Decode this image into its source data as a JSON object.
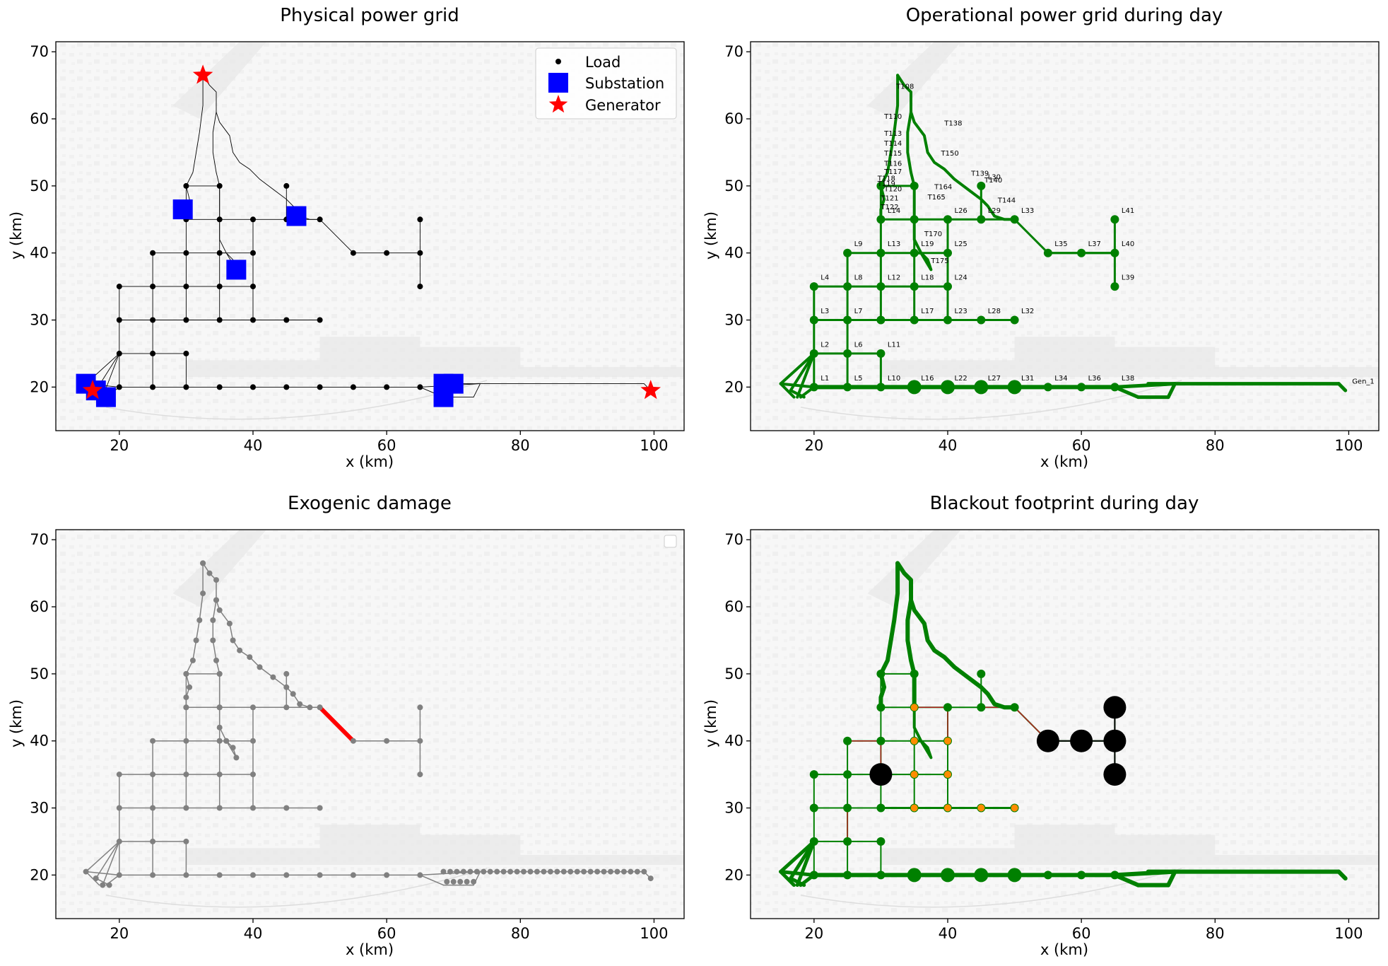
{
  "colors": {
    "load": "#000000",
    "substation": "#0000ff",
    "generator": "#ff0000",
    "operational": "#008000",
    "damage": "#ff0000",
    "damaged_line": "#b22222",
    "grey": "#808080",
    "orange": "#ff8c00",
    "terrain": "#e8e8e8"
  },
  "chart_data": [
    {
      "type": "scatter",
      "title": "Physical power grid",
      "xlabel": "x (km)",
      "ylabel": "y (km)",
      "xlim": [
        10.5,
        104.5
      ],
      "ylim": [
        13.5,
        71.5
      ],
      "xticks": [
        "20",
        "40",
        "60",
        "80",
        "100"
      ],
      "yticks": [
        "20",
        "30",
        "40",
        "50",
        "60",
        "70"
      ],
      "grid": false,
      "legend_position": "top-right",
      "series": [
        {
          "name": "Load",
          "points": [
            [
              20,
              20
            ],
            [
              25,
              20
            ],
            [
              30,
              20
            ],
            [
              35,
              20
            ],
            [
              40,
              20
            ],
            [
              45,
              20
            ],
            [
              50,
              20
            ],
            [
              55,
              20
            ],
            [
              60,
              20
            ],
            [
              65,
              20
            ],
            [
              20,
              25
            ],
            [
              25,
              25
            ],
            [
              30,
              25
            ],
            [
              20,
              30
            ],
            [
              25,
              30
            ],
            [
              30,
              30
            ],
            [
              35,
              30
            ],
            [
              40,
              30
            ],
            [
              45,
              30
            ],
            [
              50,
              30
            ],
            [
              20,
              35
            ],
            [
              25,
              35
            ],
            [
              30,
              35
            ],
            [
              35,
              35
            ],
            [
              40,
              35
            ],
            [
              25,
              40
            ],
            [
              30,
              40
            ],
            [
              35,
              40
            ],
            [
              40,
              40
            ],
            [
              30,
              45
            ],
            [
              35,
              45
            ],
            [
              40,
              45
            ],
            [
              45,
              45
            ],
            [
              50,
              45
            ],
            [
              55,
              40
            ],
            [
              60,
              40
            ],
            [
              65,
              40
            ],
            [
              65,
              45
            ],
            [
              65,
              35
            ],
            [
              30,
              50
            ],
            [
              35,
              50
            ],
            [
              45,
              50
            ]
          ]
        },
        {
          "name": "Substation",
          "points": [
            [
              15,
              20.5
            ],
            [
              16.5,
              19.5
            ],
            [
              18,
              18.5
            ],
            [
              29.5,
              46.5
            ],
            [
              46.5,
              45.5
            ],
            [
              37.5,
              37.5
            ],
            [
              68.5,
              20.5
            ],
            [
              70,
              20.5
            ],
            [
              68.5,
              18.5
            ]
          ]
        },
        {
          "name": "Generator",
          "points": [
            [
              32.5,
              66.5
            ],
            [
              16,
              19.5
            ],
            [
              99.5,
              19.5
            ]
          ]
        }
      ]
    },
    {
      "type": "scatter",
      "title": "Operational power grid during day",
      "xlabel": "x (km)",
      "ylabel": "y (km)",
      "xlim": [
        10.5,
        104.5
      ],
      "ylim": [
        13.5,
        71.5
      ],
      "xticks": [
        "20",
        "40",
        "60",
        "80",
        "100"
      ],
      "yticks": [
        "20",
        "30",
        "40",
        "50",
        "60",
        "70"
      ],
      "node_labels": [
        {
          "text": "L1",
          "x": 21,
          "y": 21
        },
        {
          "text": "L2",
          "x": 21,
          "y": 26
        },
        {
          "text": "L3",
          "x": 21,
          "y": 31
        },
        {
          "text": "L4",
          "x": 21,
          "y": 36
        },
        {
          "text": "L5",
          "x": 26,
          "y": 21
        },
        {
          "text": "L6",
          "x": 26,
          "y": 26
        },
        {
          "text": "L7",
          "x": 26,
          "y": 31
        },
        {
          "text": "L8",
          "x": 26,
          "y": 36
        },
        {
          "text": "L9",
          "x": 26,
          "y": 41
        },
        {
          "text": "L10",
          "x": 31,
          "y": 21
        },
        {
          "text": "L11",
          "x": 31,
          "y": 26
        },
        {
          "text": "L12",
          "x": 31,
          "y": 36
        },
        {
          "text": "L13",
          "x": 31,
          "y": 41
        },
        {
          "text": "L14",
          "x": 31,
          "y": 46
        },
        {
          "text": "L16",
          "x": 36,
          "y": 21
        },
        {
          "text": "L17",
          "x": 36,
          "y": 31
        },
        {
          "text": "L18",
          "x": 36,
          "y": 36
        },
        {
          "text": "L19",
          "x": 36,
          "y": 41
        },
        {
          "text": "L22",
          "x": 41,
          "y": 21
        },
        {
          "text": "L23",
          "x": 41,
          "y": 31
        },
        {
          "text": "L24",
          "x": 41,
          "y": 36
        },
        {
          "text": "L25",
          "x": 41,
          "y": 41
        },
        {
          "text": "L26",
          "x": 41,
          "y": 46
        },
        {
          "text": "L27",
          "x": 46,
          "y": 21
        },
        {
          "text": "L28",
          "x": 46,
          "y": 31
        },
        {
          "text": "L29",
          "x": 46,
          "y": 46
        },
        {
          "text": "L30",
          "x": 46,
          "y": 51
        },
        {
          "text": "L31",
          "x": 51,
          "y": 21
        },
        {
          "text": "L32",
          "x": 51,
          "y": 31
        },
        {
          "text": "L33",
          "x": 51,
          "y": 46
        },
        {
          "text": "L34",
          "x": 56,
          "y": 21
        },
        {
          "text": "L35",
          "x": 56,
          "y": 41
        },
        {
          "text": "L36",
          "x": 61,
          "y": 21
        },
        {
          "text": "L37",
          "x": 61,
          "y": 41
        },
        {
          "text": "L38",
          "x": 66,
          "y": 21
        },
        {
          "text": "L39",
          "x": 66,
          "y": 36
        },
        {
          "text": "L40",
          "x": 66,
          "y": 41
        },
        {
          "text": "L41",
          "x": 66,
          "y": 46
        },
        {
          "text": "T108",
          "x": 32.3,
          "y": 64.5
        },
        {
          "text": "T110",
          "x": 30.5,
          "y": 60
        },
        {
          "text": "T113",
          "x": 30.5,
          "y": 57.5
        },
        {
          "text": "T114",
          "x": 30.5,
          "y": 56
        },
        {
          "text": "T115",
          "x": 30.5,
          "y": 54.5
        },
        {
          "text": "T116",
          "x": 30.5,
          "y": 53
        },
        {
          "text": "T117",
          "x": 30.5,
          "y": 51.8
        },
        {
          "text": "T118",
          "x": 29.5,
          "y": 50.8
        },
        {
          "text": "T119",
          "x": 29.5,
          "y": 50
        },
        {
          "text": "T120",
          "x": 30.5,
          "y": 49.2
        },
        {
          "text": "T121",
          "x": 30,
          "y": 47.8
        },
        {
          "text": "T122",
          "x": 30,
          "y": 46.5
        },
        {
          "text": "T138",
          "x": 39.5,
          "y": 59
        },
        {
          "text": "T150",
          "x": 39,
          "y": 54.5
        },
        {
          "text": "T139",
          "x": 43.5,
          "y": 51.5
        },
        {
          "text": "T140",
          "x": 45.5,
          "y": 50.5
        },
        {
          "text": "T144",
          "x": 47.5,
          "y": 47.5
        },
        {
          "text": "T164",
          "x": 38,
          "y": 49.5
        },
        {
          "text": "T165",
          "x": 37,
          "y": 48
        },
        {
          "text": "T170",
          "x": 36.5,
          "y": 42.5
        },
        {
          "text": "T175",
          "x": 37.5,
          "y": 38.5
        },
        {
          "text": "Gen_1",
          "x": 100.5,
          "y": 20.5
        }
      ]
    },
    {
      "type": "scatter",
      "title": "Exogenic damage",
      "xlabel": "x (km)",
      "ylabel": "y (km)",
      "xlim": [
        10.5,
        104.5
      ],
      "ylim": [
        13.5,
        71.5
      ],
      "xticks": [
        "20",
        "40",
        "60",
        "80",
        "100"
      ],
      "yticks": [
        "20",
        "30",
        "40",
        "50",
        "60",
        "70"
      ],
      "legend_position": "top-right",
      "damaged_lines": [
        {
          "from": [
            50,
            45
          ],
          "to": [
            55,
            40
          ]
        }
      ]
    },
    {
      "type": "scatter",
      "title": "Blackout footprint during day",
      "xlabel": "x (km)",
      "ylabel": "y (km)",
      "xlim": [
        10.5,
        104.5
      ],
      "ylim": [
        13.5,
        71.5
      ],
      "xticks": [
        "20",
        "40",
        "60",
        "80",
        "100"
      ],
      "yticks": [
        "20",
        "30",
        "40",
        "50",
        "60",
        "70"
      ],
      "blackout_nodes": [
        [
          30,
          35
        ],
        [
          55,
          40
        ],
        [
          60,
          40
        ],
        [
          65,
          40
        ],
        [
          65,
          45
        ],
        [
          65,
          35
        ]
      ],
      "partial_nodes": [
        [
          35,
          40
        ],
        [
          40,
          40
        ],
        [
          35,
          35
        ],
        [
          40,
          35
        ],
        [
          35,
          30
        ],
        [
          40,
          30
        ],
        [
          45,
          30
        ],
        [
          50,
          30
        ],
        [
          35,
          45
        ]
      ]
    }
  ]
}
